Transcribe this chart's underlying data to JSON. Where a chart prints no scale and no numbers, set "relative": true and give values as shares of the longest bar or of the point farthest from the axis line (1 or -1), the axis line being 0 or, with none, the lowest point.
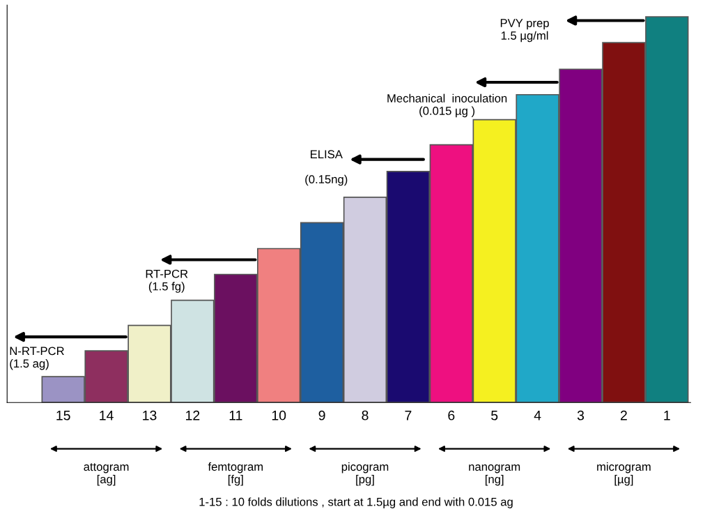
{
  "chart_data": {
    "type": "bar",
    "relative": true,
    "categories": [
      "15",
      "14",
      "13",
      "12",
      "11",
      "10",
      "9",
      "8",
      "7",
      "6",
      "5",
      "4",
      "3",
      "2",
      "1"
    ],
    "values": [
      0.067,
      0.134,
      0.2,
      0.265,
      0.332,
      0.399,
      0.466,
      0.532,
      0.599,
      0.668,
      0.733,
      0.798,
      0.864,
      0.933,
      1
    ],
    "colors": [
      "#9b93c4",
      "#8e2f5f",
      "#f0f0c8",
      "#cfe3e3",
      "#6b1060",
      "#f08080",
      "#1e5fa0",
      "#d0cce0",
      "#1a0a70",
      "#ee1080",
      "#f5f020",
      "#20a8c8",
      "#800080",
      "#801010",
      "#108080"
    ],
    "grid": false,
    "legend": false,
    "annotations": [
      "N-RT-PCR\n(1.5 ag)",
      "RT-PCR\n(1.5 fg)",
      "ELISA\n\n(0.15ng)",
      "Mechanical  inoculation\n(0.015 µg )",
      "PVY prep\n1.5 µg/ml",
      "attogram\n[ag]",
      "femtogram\n[fg]",
      "picogram\n[pg]",
      "nanogram\n[ng]",
      "microgram\n[µg]",
      "1-15 : 10 folds dilutions , start at 1.5µg and end with 0.015 ag"
    ]
  }
}
